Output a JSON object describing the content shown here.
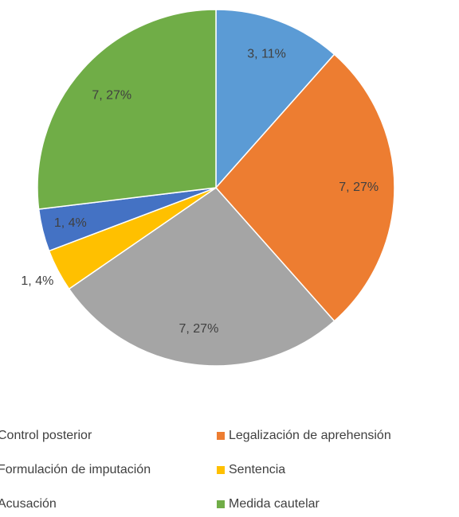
{
  "chart_data": {
    "type": "pie",
    "categories": [
      "Control posterior",
      "Legalización de aprehensión",
      "Formulación de imputación",
      "Sentencia",
      "Acusación",
      "Medida cautelar"
    ],
    "values": [
      3,
      7,
      7,
      1,
      1,
      7
    ],
    "value_labels": [
      "3, 11%",
      "7, 27%",
      "7, 27%",
      "1, 4%",
      "1, 4%",
      "7, 27%"
    ],
    "colors": [
      "#5b9bd5",
      "#ed7d31",
      "#a5a5a5",
      "#ffc000",
      "#4472c4",
      "#70ad47"
    ]
  }
}
